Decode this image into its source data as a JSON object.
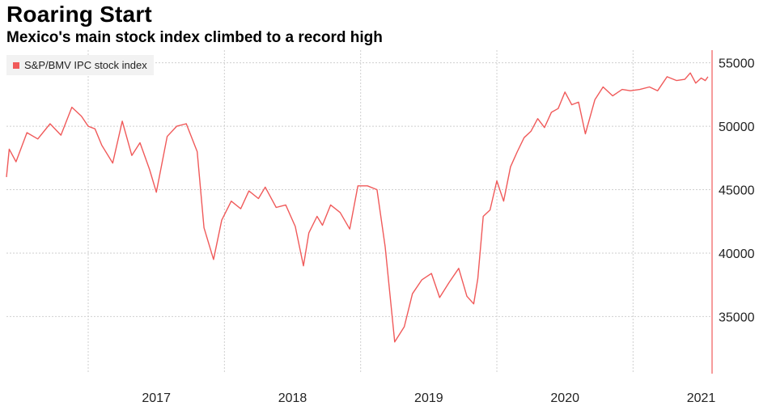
{
  "header": {
    "title": "Roaring Start",
    "subtitle": "Mexico's main stock index climbed to a record high"
  },
  "colors": {
    "series": "#f05a5a",
    "grid": "#cfcfcf",
    "axis": "#f05a5a",
    "tick_text": "#222222"
  },
  "chart_data": {
    "type": "line",
    "title": "Roaring Start",
    "subtitle": "Mexico's main stock index climbed to a record high",
    "xlabel": "",
    "ylabel": "",
    "xlim": [
      2016.4,
      2021.58
    ],
    "ylim": [
      30500,
      56000
    ],
    "y_ticks": [
      35000,
      40000,
      45000,
      50000,
      55000
    ],
    "x_tick_labels": [
      "2017",
      "2018",
      "2019",
      "2020",
      "2021"
    ],
    "x_tick_positions": [
      2017,
      2018,
      2019,
      2020,
      2021
    ],
    "grid": true,
    "legend_position": "top-left",
    "series": [
      {
        "name": "S&P/BMV IPC stock index",
        "x": [
          2016.4,
          2016.42,
          2016.47,
          2016.55,
          2016.63,
          2016.72,
          2016.8,
          2016.88,
          2016.95,
          2017.0,
          2017.05,
          2017.1,
          2017.18,
          2017.25,
          2017.32,
          2017.38,
          2017.45,
          2017.5,
          2017.58,
          2017.65,
          2017.72,
          2017.8,
          2017.85,
          2017.92,
          2017.98,
          2018.05,
          2018.12,
          2018.18,
          2018.25,
          2018.3,
          2018.38,
          2018.45,
          2018.52,
          2018.58,
          2018.62,
          2018.68,
          2018.72,
          2018.78,
          2018.85,
          2018.92,
          2018.98,
          2019.05,
          2019.12,
          2019.18,
          2019.25,
          2019.32,
          2019.38,
          2019.45,
          2019.52,
          2019.58,
          2019.65,
          2019.72,
          2019.78,
          2019.83,
          2019.86,
          2019.9,
          2019.95,
          2020.0,
          2020.05,
          2020.1,
          2020.15,
          2020.2,
          2020.25,
          2020.3,
          2020.35,
          2020.4,
          2020.45,
          2020.5,
          2020.55,
          2020.6,
          2020.65,
          2020.72,
          2020.78,
          2020.85,
          2020.92,
          2020.98,
          2021.05,
          2021.12,
          2021.18,
          2021.25,
          2021.32,
          2021.38,
          2021.42,
          2021.46,
          2021.5,
          2021.53,
          2021.55
        ],
        "values": [
          46000,
          48200,
          47200,
          49500,
          49000,
          50200,
          49300,
          51500,
          50800,
          50000,
          49800,
          48500,
          47100,
          50400,
          47700,
          48700,
          46600,
          44800,
          49200,
          50000,
          50200,
          48000,
          42000,
          39500,
          42600,
          44100,
          43500,
          44900,
          44300,
          45200,
          43600,
          43800,
          42100,
          39000,
          41600,
          42900,
          42200,
          43800,
          43200,
          41900,
          45300,
          45300,
          45000,
          40500,
          33000,
          34200,
          36800,
          37900,
          38400,
          36500,
          37700,
          38800,
          36600,
          36000,
          38000,
          42900,
          43400,
          45700,
          44100,
          46800,
          48000,
          49100,
          49600,
          50600,
          49900,
          51100,
          51400,
          52700,
          51700,
          51900,
          49400,
          52100,
          53100,
          52400,
          52900,
          52800,
          52900,
          53100,
          52800,
          53900,
          53600,
          53700,
          54200,
          53400,
          53800,
          53600,
          53900
        ]
      }
    ]
  }
}
